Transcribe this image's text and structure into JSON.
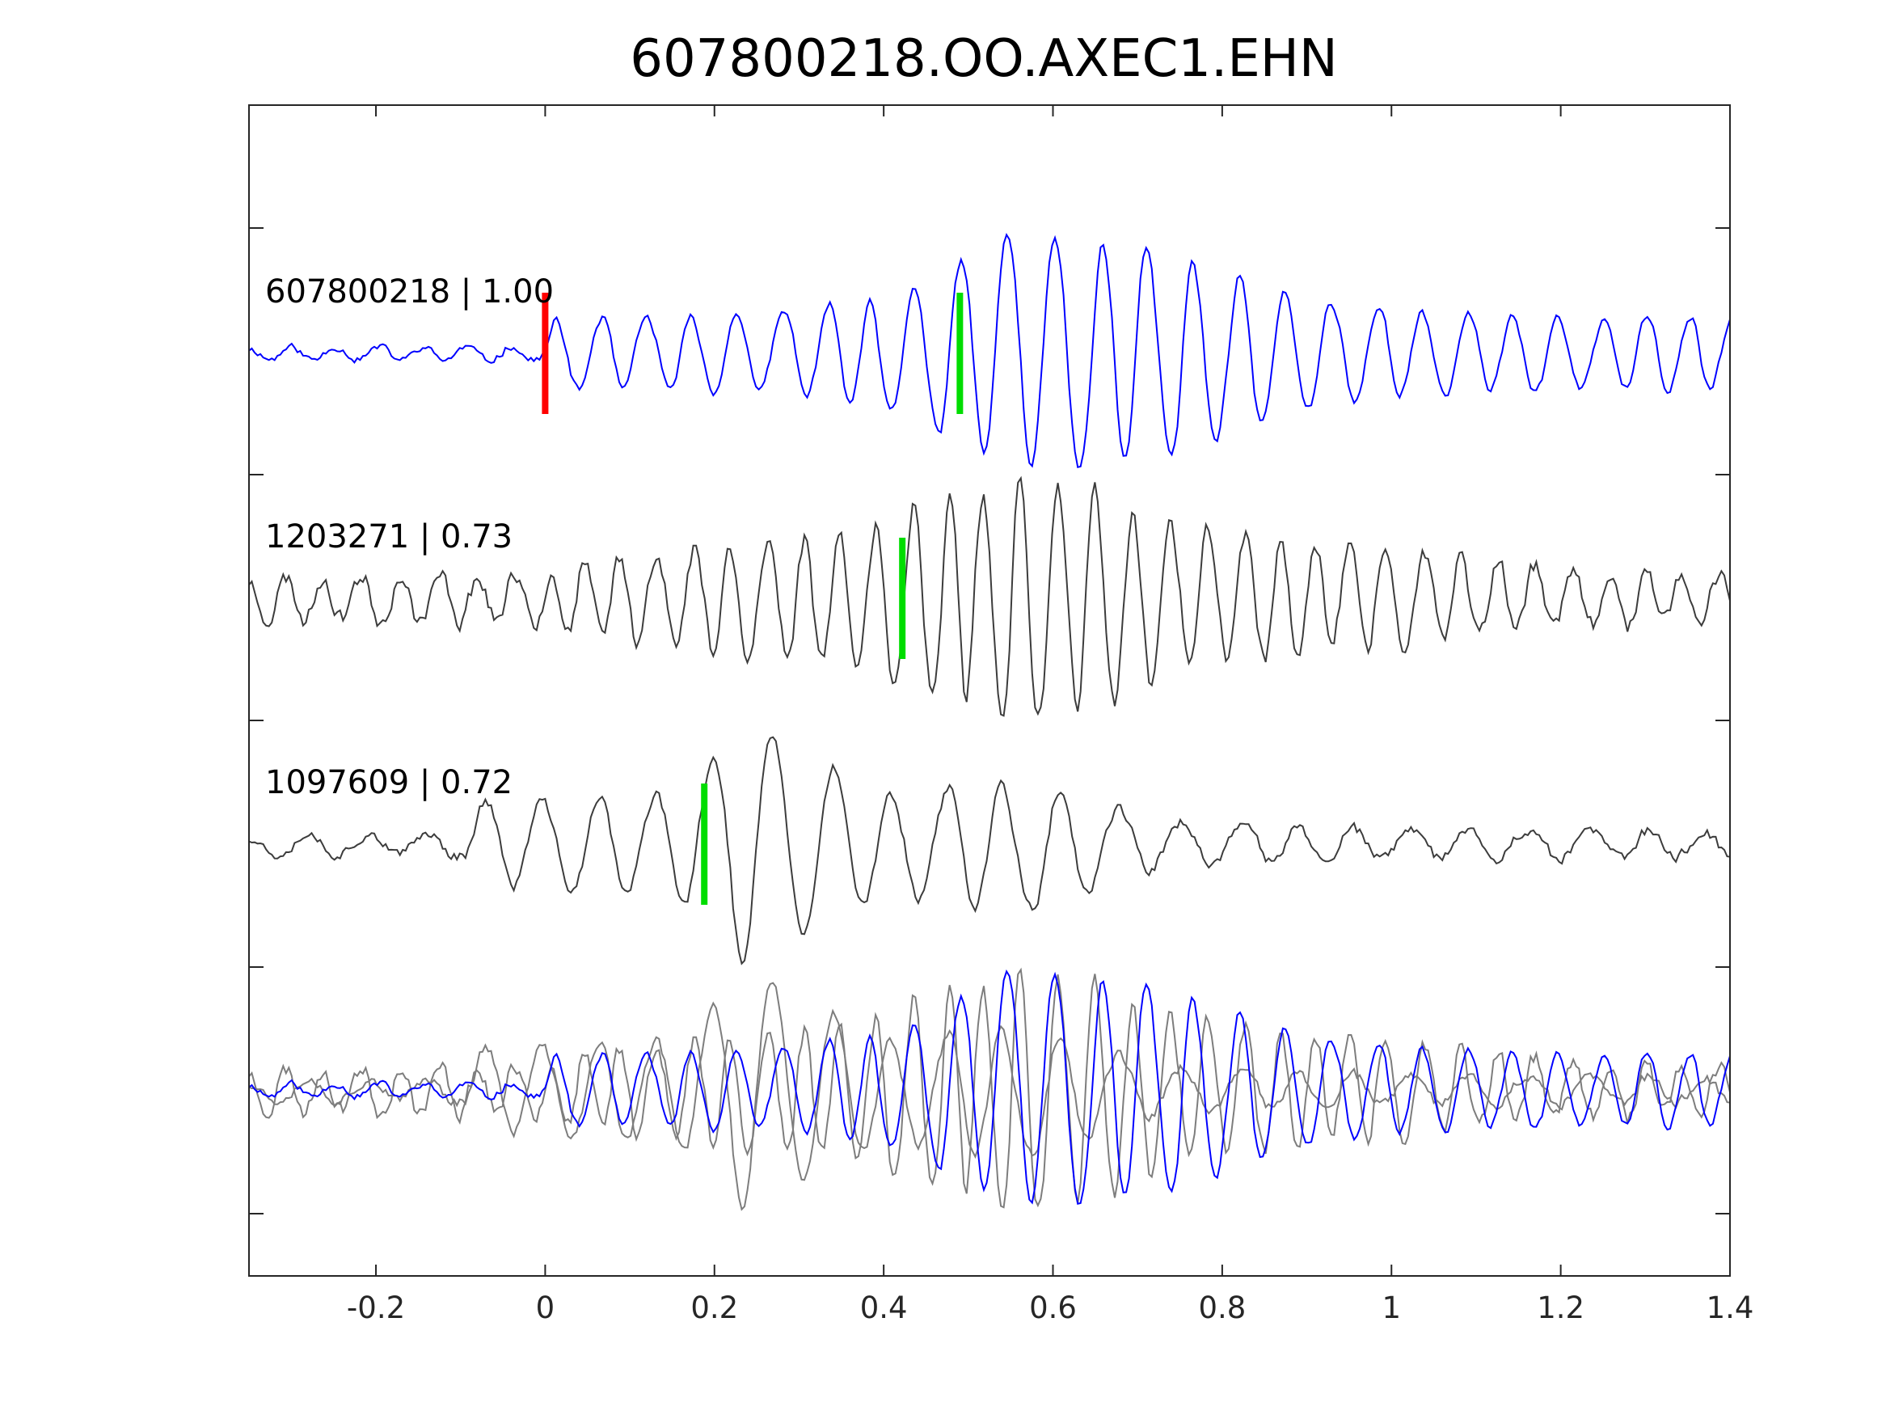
{
  "chart_data": {
    "type": "line",
    "title": "607800218.OO.AXEC1.EHN",
    "xlabel": "",
    "ylabel": "",
    "xlim": [
      -0.35,
      1.4
    ],
    "x_ticks": [
      -0.2,
      0,
      0.2,
      0.4,
      0.6,
      0.8,
      1,
      1.2,
      1.4
    ],
    "x_tick_labels": [
      "-0.2",
      "0",
      "0.2",
      "0.4",
      "0.6",
      "0.8",
      "1",
      "1.2",
      "1.4"
    ],
    "y_tick_labels_shown": false,
    "grid": false,
    "traces": [
      {
        "label": "607800218 | 1.00",
        "event_id": "607800218",
        "cc": 1.0,
        "color": "#0000ff",
        "offset_row": 0,
        "p_pick_x": 0.0,
        "p_pick_color": "#ff0000",
        "s_pick_x": 0.49,
        "s_pick_color": "#00dd00",
        "envelope": [
          [
            -0.35,
            0.05
          ],
          [
            0.0,
            0.06
          ],
          [
            0.01,
            0.3
          ],
          [
            0.1,
            0.3
          ],
          [
            0.3,
            0.35
          ],
          [
            0.44,
            0.55
          ],
          [
            0.5,
            0.8
          ],
          [
            0.55,
            1.0
          ],
          [
            0.62,
            0.95
          ],
          [
            0.7,
            0.9
          ],
          [
            0.8,
            0.7
          ],
          [
            0.9,
            0.45
          ],
          [
            1.0,
            0.35
          ],
          [
            1.2,
            0.3
          ],
          [
            1.4,
            0.3
          ]
        ],
        "period": 0.055,
        "noise": 0.04,
        "seed": 11
      },
      {
        "label": "1203271 | 0.73",
        "event_id": "1203271",
        "cc": 0.73,
        "color": "#3c3c3c",
        "offset_row": 1,
        "s_pick_x": 0.422,
        "s_pick_color": "#00dd00",
        "envelope": [
          [
            -0.35,
            0.18
          ],
          [
            0.0,
            0.2
          ],
          [
            0.05,
            0.35
          ],
          [
            0.2,
            0.45
          ],
          [
            0.35,
            0.55
          ],
          [
            0.42,
            0.8
          ],
          [
            0.56,
            1.0
          ],
          [
            0.65,
            0.95
          ],
          [
            0.75,
            0.6
          ],
          [
            0.9,
            0.45
          ],
          [
            1.0,
            0.4
          ],
          [
            1.2,
            0.25
          ],
          [
            1.4,
            0.2
          ]
        ],
        "period": 0.045,
        "noise": 0.1,
        "seed": 23
      },
      {
        "label": "1097609 | 0.72",
        "event_id": "1097609",
        "cc": 0.72,
        "color": "#3c3c3c",
        "offset_row": 2,
        "s_pick_x": 0.188,
        "s_pick_color": "#00dd00",
        "envelope": [
          [
            -0.35,
            0.08
          ],
          [
            -0.1,
            0.1
          ],
          [
            -0.08,
            0.35
          ],
          [
            0.0,
            0.35
          ],
          [
            0.15,
            0.4
          ],
          [
            0.24,
            1.0
          ],
          [
            0.3,
            0.75
          ],
          [
            0.4,
            0.4
          ],
          [
            0.5,
            0.5
          ],
          [
            0.56,
            0.55
          ],
          [
            0.65,
            0.35
          ],
          [
            0.72,
            0.2
          ],
          [
            0.8,
            0.15
          ],
          [
            1.0,
            0.12
          ],
          [
            1.4,
            0.1
          ]
        ],
        "period": 0.07,
        "noise": 0.06,
        "seed": 37
      }
    ],
    "overlay_row": 3,
    "overlay_description_hidden": true
  }
}
